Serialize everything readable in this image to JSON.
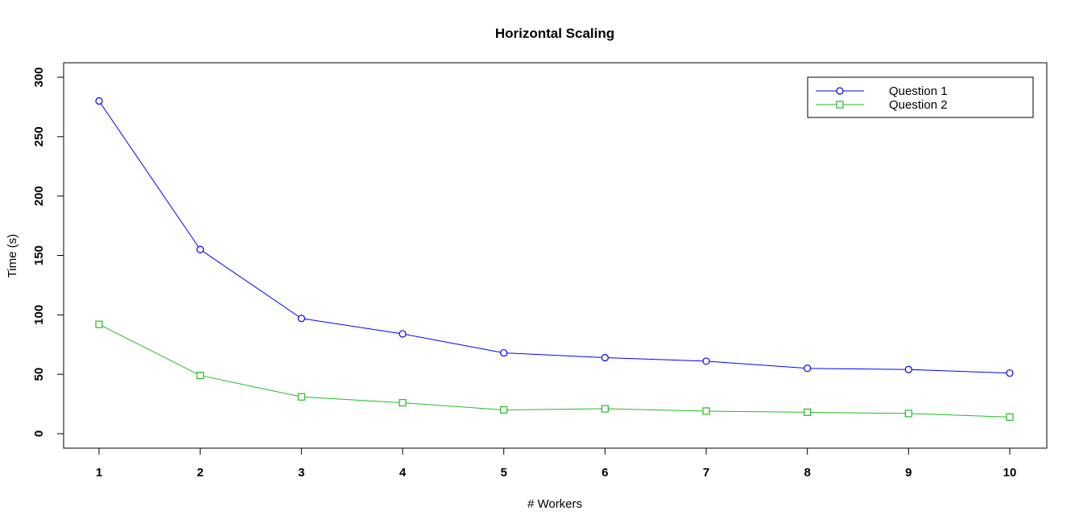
{
  "chart_data": {
    "type": "line",
    "title": "Horizontal Scaling",
    "xlabel": "# Workers",
    "ylabel": "Time (s)",
    "x": [
      1,
      2,
      3,
      4,
      5,
      6,
      7,
      8,
      9,
      10
    ],
    "xlim": [
      1,
      10
    ],
    "ylim": [
      0,
      300
    ],
    "yticks": [
      0,
      50,
      100,
      150,
      200,
      250,
      300
    ],
    "grid": false,
    "legend_position": "top-right",
    "series": [
      {
        "name": "Question 1",
        "color": "#0000ff",
        "marker": "circle",
        "values": [
          280,
          155,
          97,
          84,
          68,
          64,
          61,
          55,
          54,
          51
        ]
      },
      {
        "name": "Question 2",
        "color": "#22bb22",
        "marker": "square",
        "values": [
          92,
          49,
          31,
          26,
          20,
          21,
          19,
          18,
          17,
          14
        ]
      }
    ]
  }
}
